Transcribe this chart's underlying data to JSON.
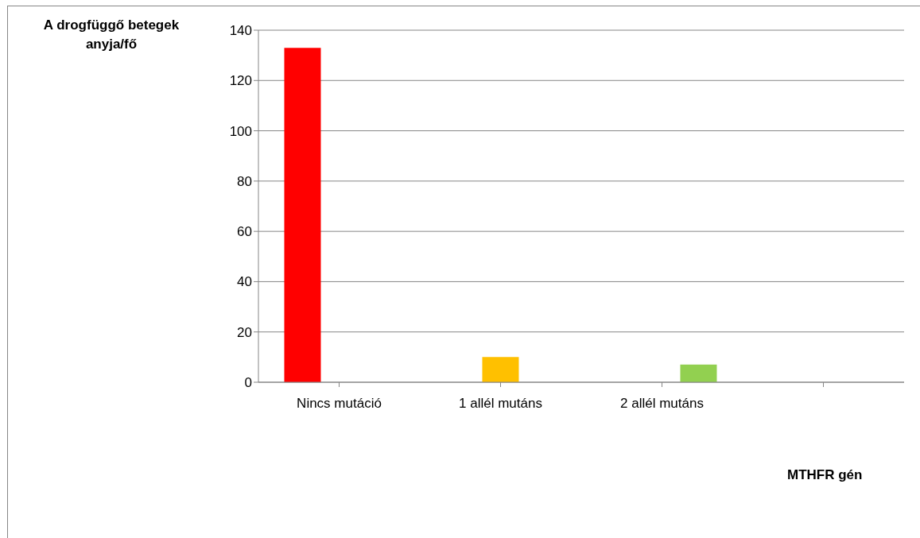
{
  "chart_data": {
    "type": "bar",
    "ylabel": "A drogfüggő betegek anyja/fő",
    "xlabel": "MTHFR gén",
    "categories": [
      "Nincs mutáció",
      "1 allél mutáns",
      "2 allél mutáns",
      null
    ],
    "series": [
      {
        "color": "#ff0000",
        "values": [
          133,
          null,
          null,
          null
        ]
      },
      {
        "color": "#ffc000",
        "values": [
          null,
          10,
          null,
          null
        ]
      },
      {
        "color": "#92d050",
        "values": [
          null,
          null,
          7,
          null
        ]
      }
    ],
    "ylim": [
      0,
      140
    ],
    "yticks": [
      0,
      20,
      40,
      60,
      80,
      100,
      120,
      140
    ],
    "grid": "y"
  }
}
